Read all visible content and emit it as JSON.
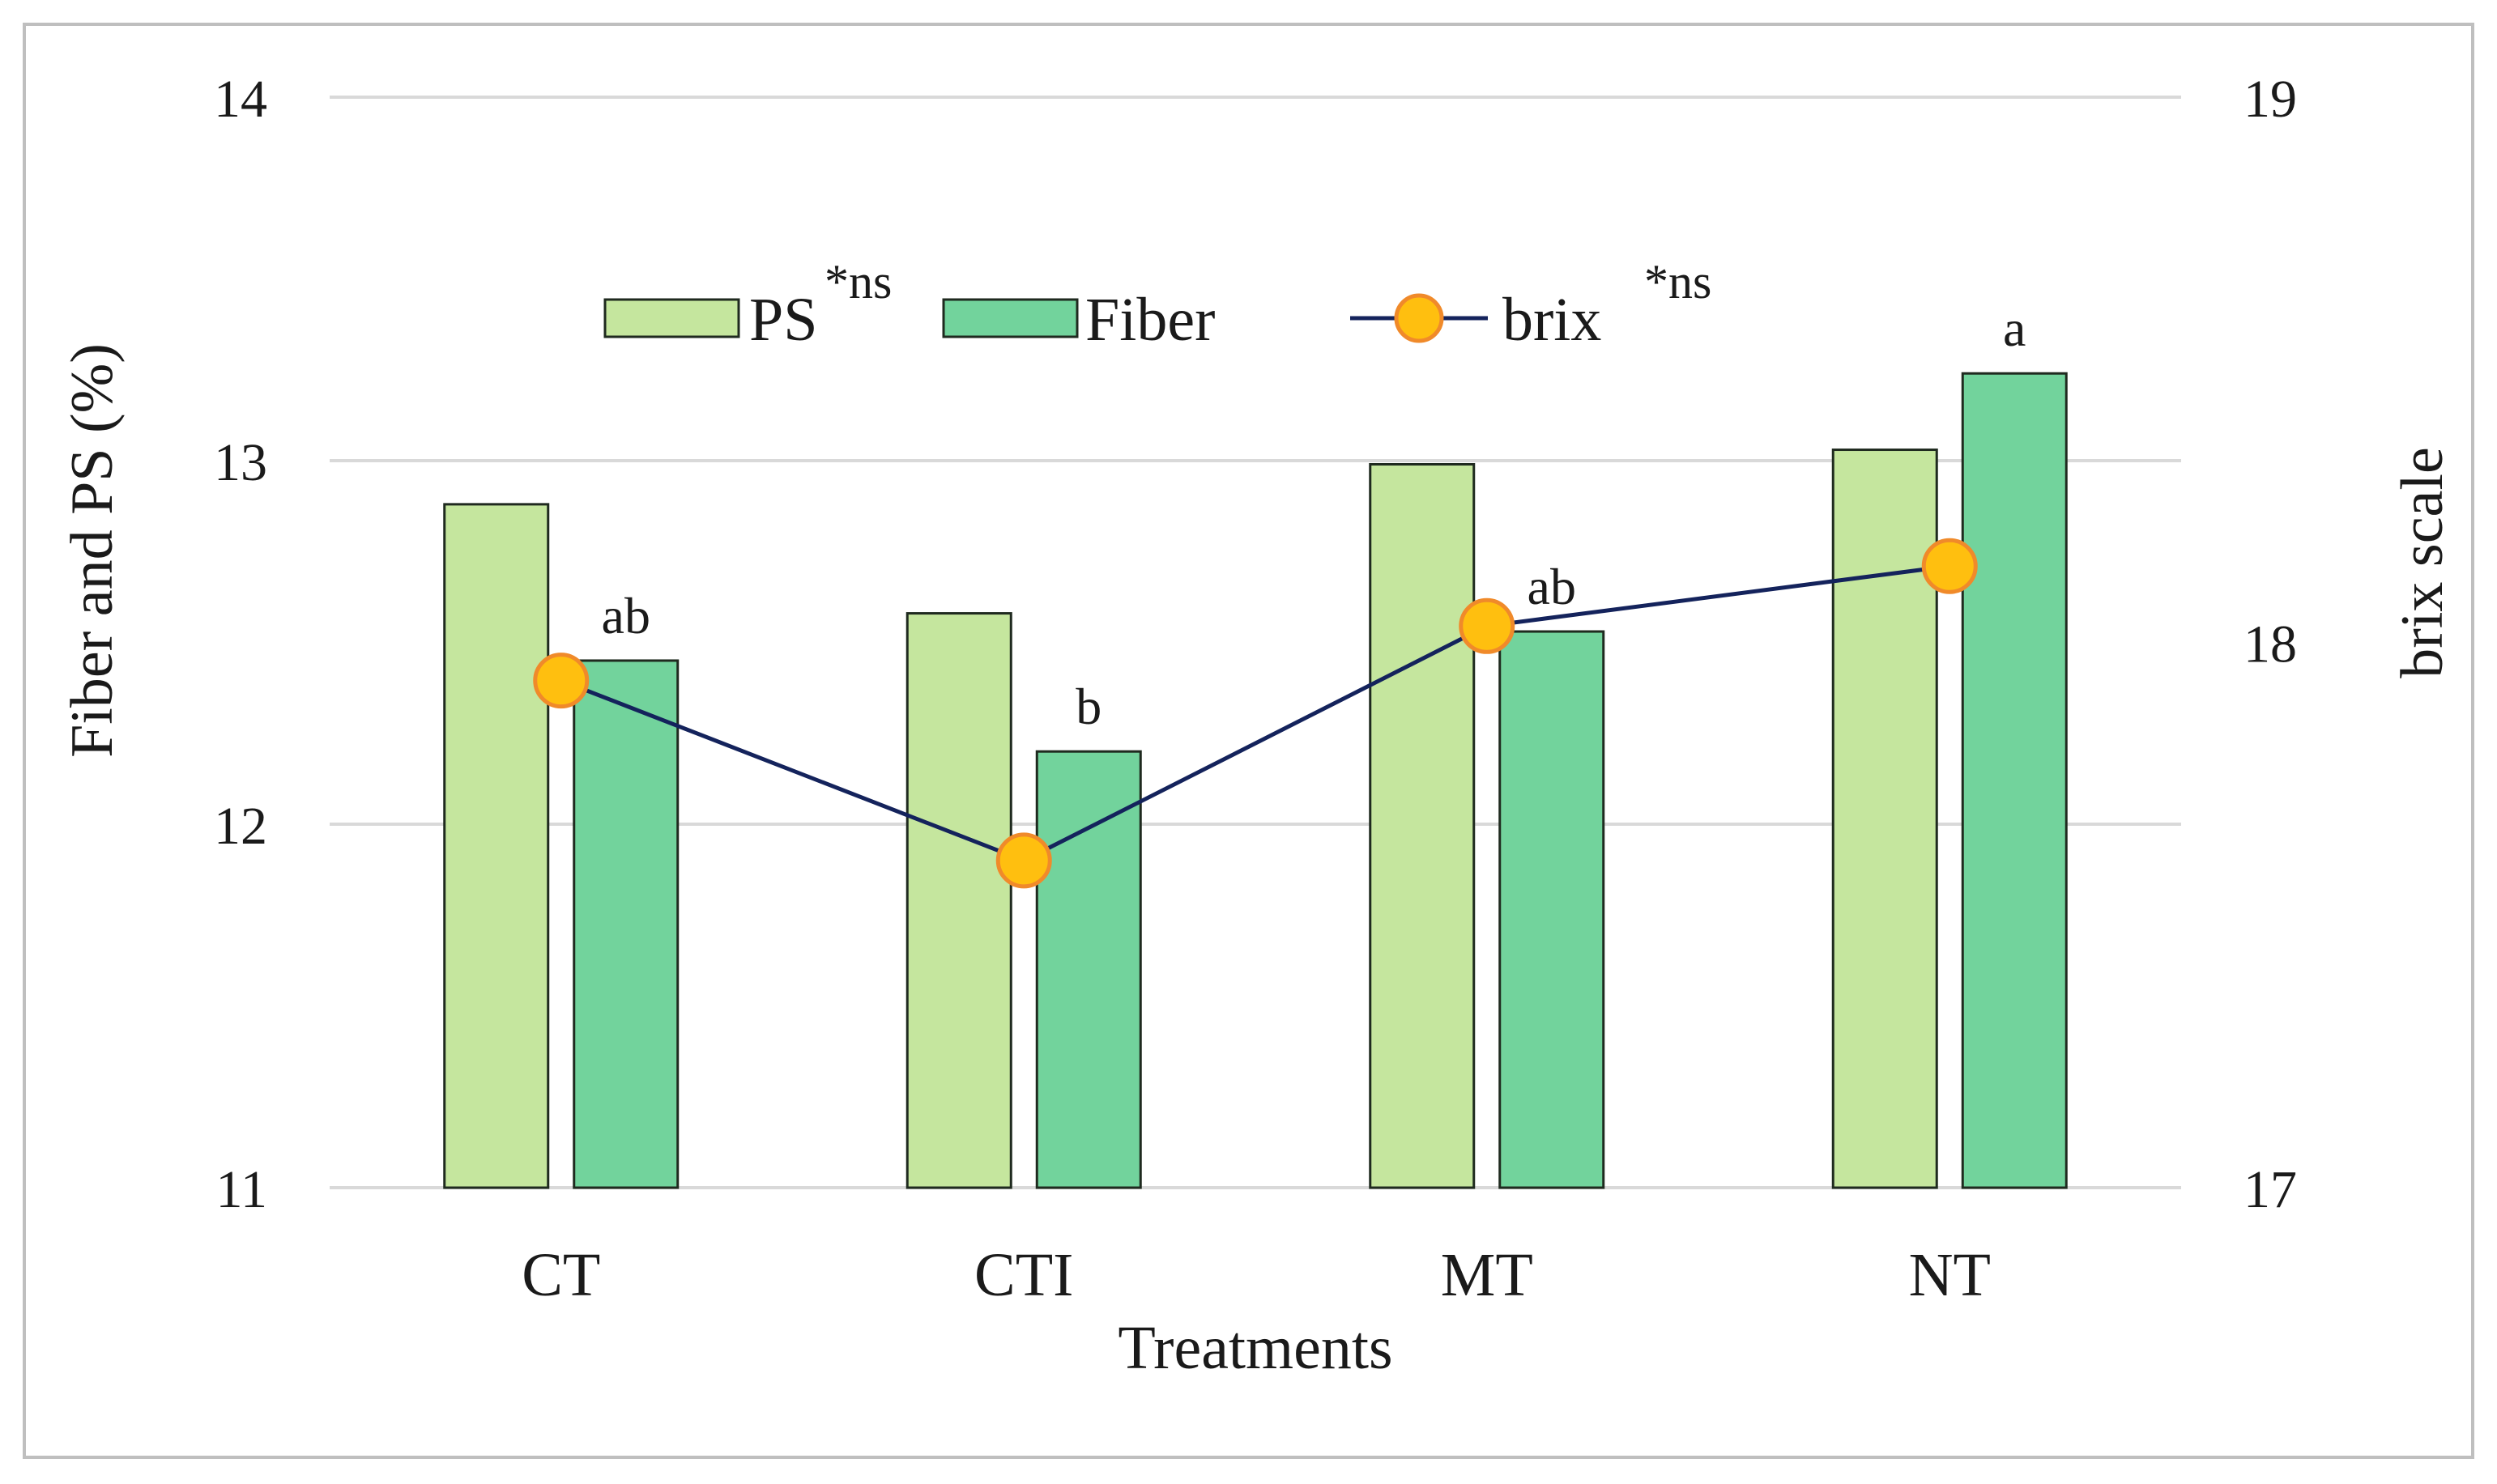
{
  "chart_data": {
    "type": "bar",
    "title": "",
    "xlabel": "Treatments",
    "ylabel": "Fiber and PS (%)",
    "y2label": "brix scale",
    "categories": [
      "CT",
      "CTI",
      "MT",
      "NT"
    ],
    "ylim": [
      11,
      14
    ],
    "yticks": [
      "11",
      "12",
      "13",
      "14"
    ],
    "y2lim": [
      17,
      19
    ],
    "y2ticks": [
      "17",
      "18",
      "19"
    ],
    "grid": true,
    "series": [
      {
        "name": "PS",
        "legend_sup": "*ns",
        "type": "bar",
        "axis": "left",
        "color": "#c5e69e",
        "values": [
          12.88,
          12.58,
          12.99,
          13.03
        ]
      },
      {
        "name": "Fiber",
        "legend_sup": "",
        "type": "bar",
        "axis": "left",
        "color": "#72d39c",
        "values": [
          12.45,
          12.2,
          12.53,
          13.24
        ]
      },
      {
        "name": "brix ",
        "legend_sup": "*ns",
        "type": "line",
        "axis": "right",
        "color": "#14235c",
        "marker_color": "#ffbf0f",
        "marker_edge": "#f08a2a",
        "values": [
          17.93,
          17.6,
          18.03,
          18.14
        ]
      }
    ],
    "annotations": [
      "ab",
      "b",
      "ab",
      "a"
    ],
    "legend_position": "top-center"
  }
}
